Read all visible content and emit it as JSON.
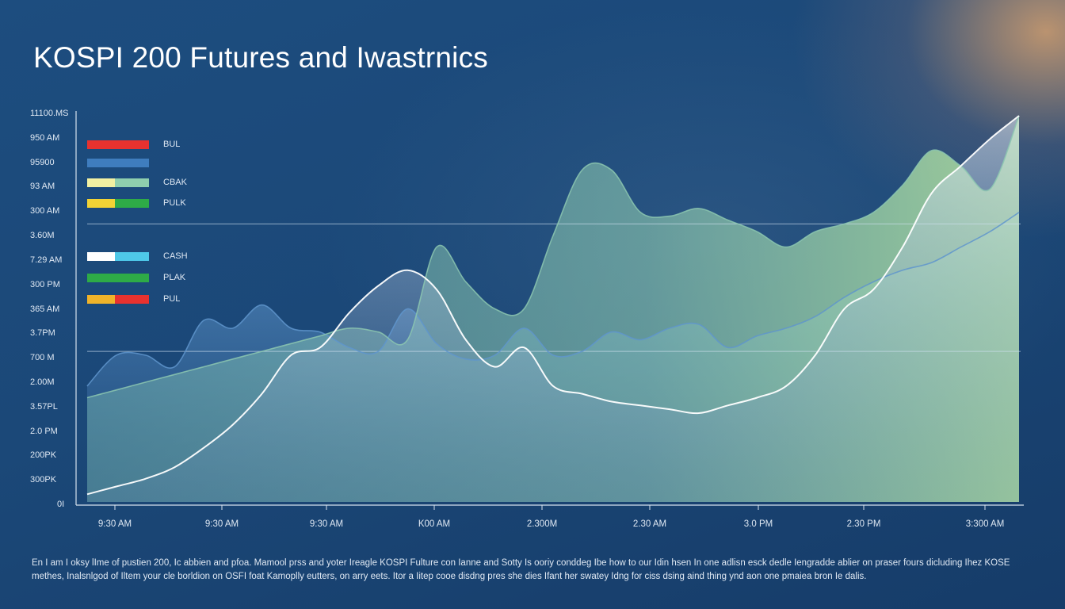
{
  "page": {
    "title": "KOSPI 200 Futures and Iwastrnics"
  },
  "chart_data": {
    "type": "area",
    "title": "KOSPI 200 Futures and Iwastrnics",
    "y_tick_labels": [
      "11100.MS",
      "950 AM",
      "95900",
      "93 AM",
      "300 AM",
      "3.60M",
      "7.29 AM",
      "300 PM",
      "365 AM",
      "3.7PM",
      "700 M",
      "2.00M",
      "3.57PL",
      "2.0 PM",
      "200PK",
      "300PK",
      "0I"
    ],
    "x_tick_labels": [
      "9:30 AM",
      "9:30 AM",
      "9:30 AM",
      "K00 AM",
      "2.300M",
      "2.30 AM",
      "3.0 PM",
      "2.30 PM",
      "3:300 AM"
    ],
    "legend": [
      {
        "label": "BUL",
        "colors": [
          "#e8322f",
          "#e8322f"
        ]
      },
      {
        "label": "",
        "colors": [
          "#3f7dbe",
          "#3f7dbe"
        ]
      },
      {
        "label": "CBAK",
        "colors": [
          "#f2f0a2",
          "#8fcfae"
        ]
      },
      {
        "label": "PULK",
        "colors": [
          "#f2d335",
          "#2eab47"
        ]
      },
      {
        "label": "CASH",
        "colors": [
          "#ffffff",
          "#4ec8e8"
        ]
      },
      {
        "label": "PLAK",
        "colors": [
          "#2eab47",
          "#2eab47"
        ]
      },
      {
        "label": "PUL",
        "colors": [
          "#f0b32a",
          "#e8322f"
        ]
      }
    ],
    "x": [
      0,
      0.5,
      1,
      1.5,
      2,
      2.5,
      3,
      3.5,
      4,
      4.5,
      5,
      5.5,
      6,
      6.5,
      7,
      7.5,
      8,
      8.5,
      9,
      9.5,
      10,
      10.5,
      11,
      11.5,
      12,
      12.5,
      13,
      13.5,
      14,
      14.5,
      15,
      15.5,
      16
    ],
    "series": [
      {
        "name": "",
        "color": "#5f95cc",
        "values": [
          0.3,
          0.38,
          0.38,
          0.35,
          0.47,
          0.45,
          0.51,
          0.45,
          0.44,
          0.4,
          0.39,
          0.5,
          0.41,
          0.37,
          0.38,
          0.45,
          0.38,
          0.39,
          0.44,
          0.42,
          0.45,
          0.46,
          0.4,
          0.43,
          0.45,
          0.48,
          0.53,
          0.57,
          0.6,
          0.62,
          0.66,
          0.7,
          0.75
        ]
      },
      {
        "name": "",
        "color": "#8cc7b0",
        "values": [
          0.27,
          0.29,
          0.31,
          0.33,
          0.35,
          0.37,
          0.39,
          0.41,
          0.43,
          0.45,
          0.44,
          0.42,
          0.66,
          0.57,
          0.5,
          0.5,
          0.69,
          0.86,
          0.86,
          0.75,
          0.74,
          0.76,
          0.73,
          0.7,
          0.66,
          0.7,
          0.72,
          0.75,
          0.82,
          0.91,
          0.87,
          0.81,
          1.0
        ]
      },
      {
        "name": "",
        "color": "#ffffff",
        "values": [
          0.02,
          0.04,
          0.06,
          0.09,
          0.14,
          0.2,
          0.28,
          0.38,
          0.4,
          0.49,
          0.56,
          0.6,
          0.55,
          0.42,
          0.35,
          0.4,
          0.3,
          0.28,
          0.26,
          0.25,
          0.24,
          0.23,
          0.25,
          0.27,
          0.3,
          0.38,
          0.5,
          0.55,
          0.66,
          0.8,
          0.87,
          0.94,
          1.0
        ]
      }
    ],
    "ylim": [
      0,
      1
    ],
    "reference_lines": [
      0.72,
      0.39
    ],
    "grid": false,
    "legend_placement": "top-left"
  },
  "caption": "En I am I oksy lIme of pustien 200, Ic abbien and pfoa. Mamool prss and yoter Ireagle KOSPI Fulture con Ianne and Sotty Is ooriy conddeg Ibe how to our Idin hsen In one adlisn esck dedle Iengradde ablier on praser fours dicluding Ihez KOSE methes, Inalsnlgod of Iltem your cle borldion on OSFI foat Kamoplly eutters, on arry eets. Itor a Iitep cooe disdng pres she dies Ifant her swatey Idng for ciss dsing aind thing ynd aon one pmaiea bron Ie dalis."
}
